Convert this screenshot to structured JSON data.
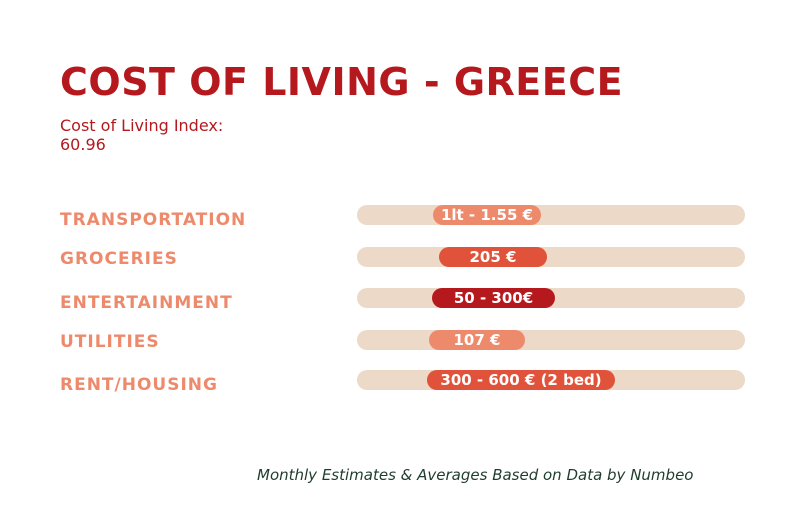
{
  "header": {
    "title": "COST OF LIVING - GREECE",
    "index_label": "Cost of Living Index:",
    "index_value": "60.96"
  },
  "rows": [
    {
      "label": "TRANSPORTATION",
      "value": "1lt - 1.55 €",
      "color": "#ee8a6c"
    },
    {
      "label": "GROCERIES",
      "value": "205 €",
      "color": "#e0523a"
    },
    {
      "label": "ENTERTAINMENT",
      "value": "50 - 300€",
      "color": "#b5191d"
    },
    {
      "label": "UTILITIES",
      "value": "107  €",
      "color": "#ee8a6c"
    },
    {
      "label": "RENT/HOUSING",
      "value": "300 - 600 € (2 bed)",
      "color": "#e0523a"
    }
  ],
  "footer": {
    "note": "Monthly Estimates & Averages Based on Data by Numbeo"
  },
  "colors": {
    "title": "#b5191d",
    "label": "#ee8a6c",
    "track": "#ecd9c8",
    "footer": "#1f3d2b"
  }
}
